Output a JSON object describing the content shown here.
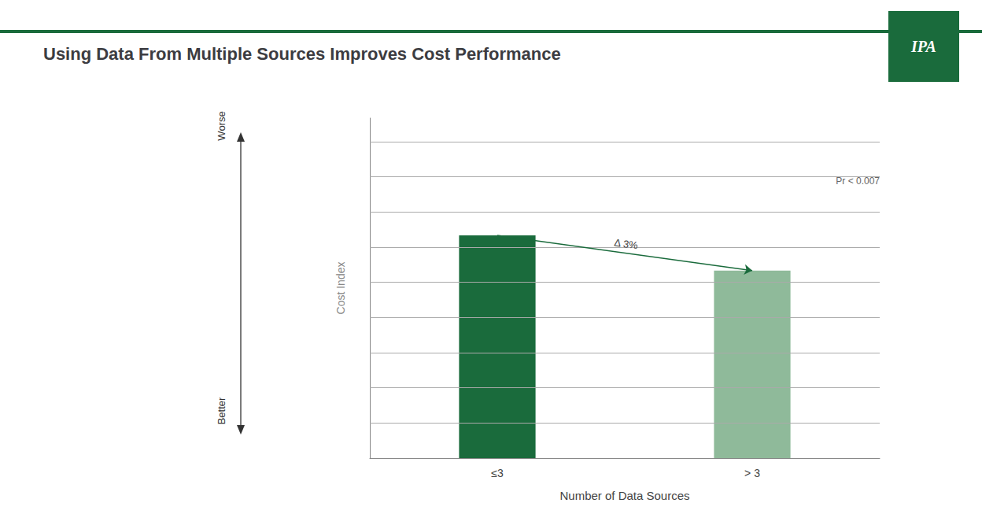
{
  "chart_data": {
    "type": "bar",
    "title": "Using Data From Multiple Sources Improves Cost Performance",
    "categories": [
      "≤3",
      "> 3"
    ],
    "values": [
      1.03,
      1.0
    ],
    "colors": [
      "#1a6b3c",
      "#8fba9a"
    ],
    "xlabel": "Number of Data Sources",
    "ylabel": "Cost Index",
    "ylim": [
      0.84,
      1.13
    ],
    "yticks": [
      0.87,
      0.9,
      0.93,
      0.96,
      0.99,
      1.02,
      1.05,
      1.08,
      1.11
    ],
    "grid": true,
    "tick_labels": "x",
    "annotations": [
      "Δ 3%",
      "Pr < 0.007",
      "Worse",
      "Better",
      "IPA"
    ]
  }
}
